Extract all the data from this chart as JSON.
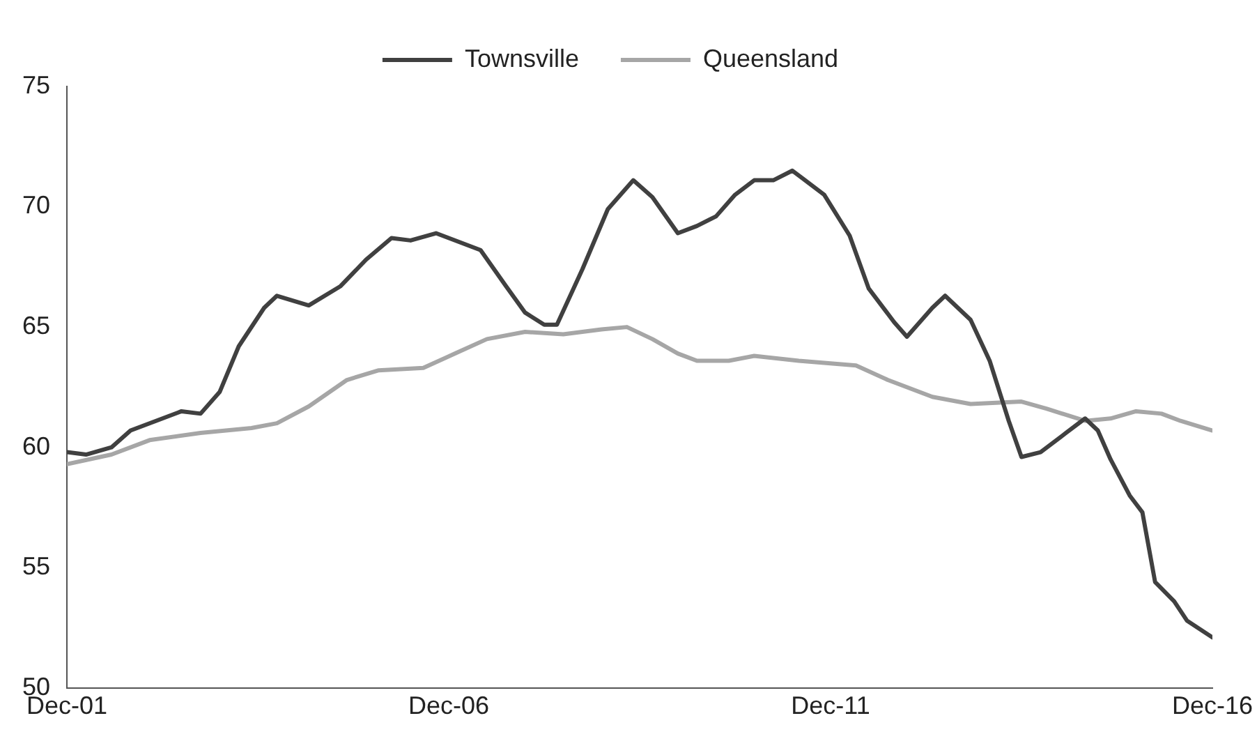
{
  "chart_data": {
    "type": "line",
    "series": [
      {
        "name": "Townsville",
        "color": "#404040",
        "x": [
          "2001-12",
          "2002-03",
          "2002-07",
          "2002-10",
          "2003-02",
          "2003-06",
          "2003-09",
          "2003-12",
          "2004-03",
          "2004-07",
          "2004-09",
          "2005-02",
          "2005-07",
          "2005-11",
          "2006-03",
          "2006-06",
          "2006-10",
          "2007-05",
          "2007-09",
          "2007-12",
          "2008-03",
          "2008-05",
          "2008-09",
          "2009-01",
          "2009-05",
          "2009-08",
          "2009-12",
          "2010-03",
          "2010-06",
          "2010-09",
          "2010-12",
          "2011-03",
          "2011-06",
          "2011-11",
          "2012-03",
          "2012-06",
          "2012-10",
          "2012-12",
          "2013-04",
          "2013-06",
          "2013-10",
          "2014-01",
          "2014-04",
          "2014-06",
          "2014-09",
          "2015-01",
          "2015-04",
          "2015-06",
          "2015-08",
          "2015-11",
          "2016-01",
          "2016-03",
          "2016-06",
          "2016-08",
          "2016-12"
        ],
        "values": [
          59.8,
          59.7,
          60.0,
          60.7,
          61.1,
          61.5,
          61.4,
          62.3,
          64.2,
          65.8,
          66.3,
          65.9,
          66.7,
          67.8,
          68.7,
          68.6,
          68.9,
          68.2,
          66.7,
          65.6,
          65.1,
          65.1,
          67.4,
          69.9,
          71.1,
          70.4,
          68.9,
          69.2,
          69.6,
          70.5,
          71.1,
          71.1,
          71.5,
          70.5,
          68.8,
          66.6,
          65.2,
          64.6,
          65.8,
          66.3,
          65.3,
          63.6,
          61.1,
          59.6,
          59.8,
          60.6,
          61.2,
          60.7,
          59.5,
          58.0,
          57.3,
          54.4,
          53.6,
          52.8,
          52.1
        ]
      },
      {
        "name": "Queensland",
        "color": "#a6a6a6",
        "x": [
          "2001-12",
          "2002-07",
          "2003-01",
          "2003-09",
          "2004-05",
          "2004-09",
          "2005-02",
          "2005-08",
          "2006-01",
          "2006-08",
          "2007-01",
          "2007-06",
          "2007-12",
          "2008-06",
          "2008-12",
          "2009-04",
          "2009-08",
          "2009-12",
          "2010-03",
          "2010-08",
          "2010-12",
          "2011-07",
          "2012-04",
          "2012-09",
          "2013-04",
          "2013-10",
          "2014-06",
          "2014-10",
          "2015-04",
          "2015-08",
          "2015-12",
          "2016-04",
          "2016-07",
          "2016-12"
        ],
        "values": [
          59.3,
          59.7,
          60.3,
          60.6,
          60.8,
          61.0,
          61.7,
          62.8,
          63.2,
          63.3,
          63.9,
          64.5,
          64.8,
          64.7,
          64.9,
          65.0,
          64.5,
          63.9,
          63.6,
          63.6,
          63.8,
          63.6,
          63.4,
          62.8,
          62.1,
          61.8,
          61.9,
          61.6,
          61.1,
          61.2,
          61.5,
          61.4,
          61.1,
          60.7
        ]
      }
    ],
    "xlim": [
      "2001-12",
      "2016-12"
    ],
    "xticks": [
      {
        "value": "2001-12",
        "label": "Dec-01"
      },
      {
        "value": "2006-12",
        "label": "Dec-06"
      },
      {
        "value": "2011-12",
        "label": "Dec-11"
      },
      {
        "value": "2016-12",
        "label": "Dec-16"
      }
    ],
    "ylim": [
      50,
      75
    ],
    "yticks": [
      50,
      55,
      60,
      65,
      70,
      75
    ],
    "grid": false,
    "legend": "top",
    "marker": "none",
    "line_style": "solid"
  }
}
